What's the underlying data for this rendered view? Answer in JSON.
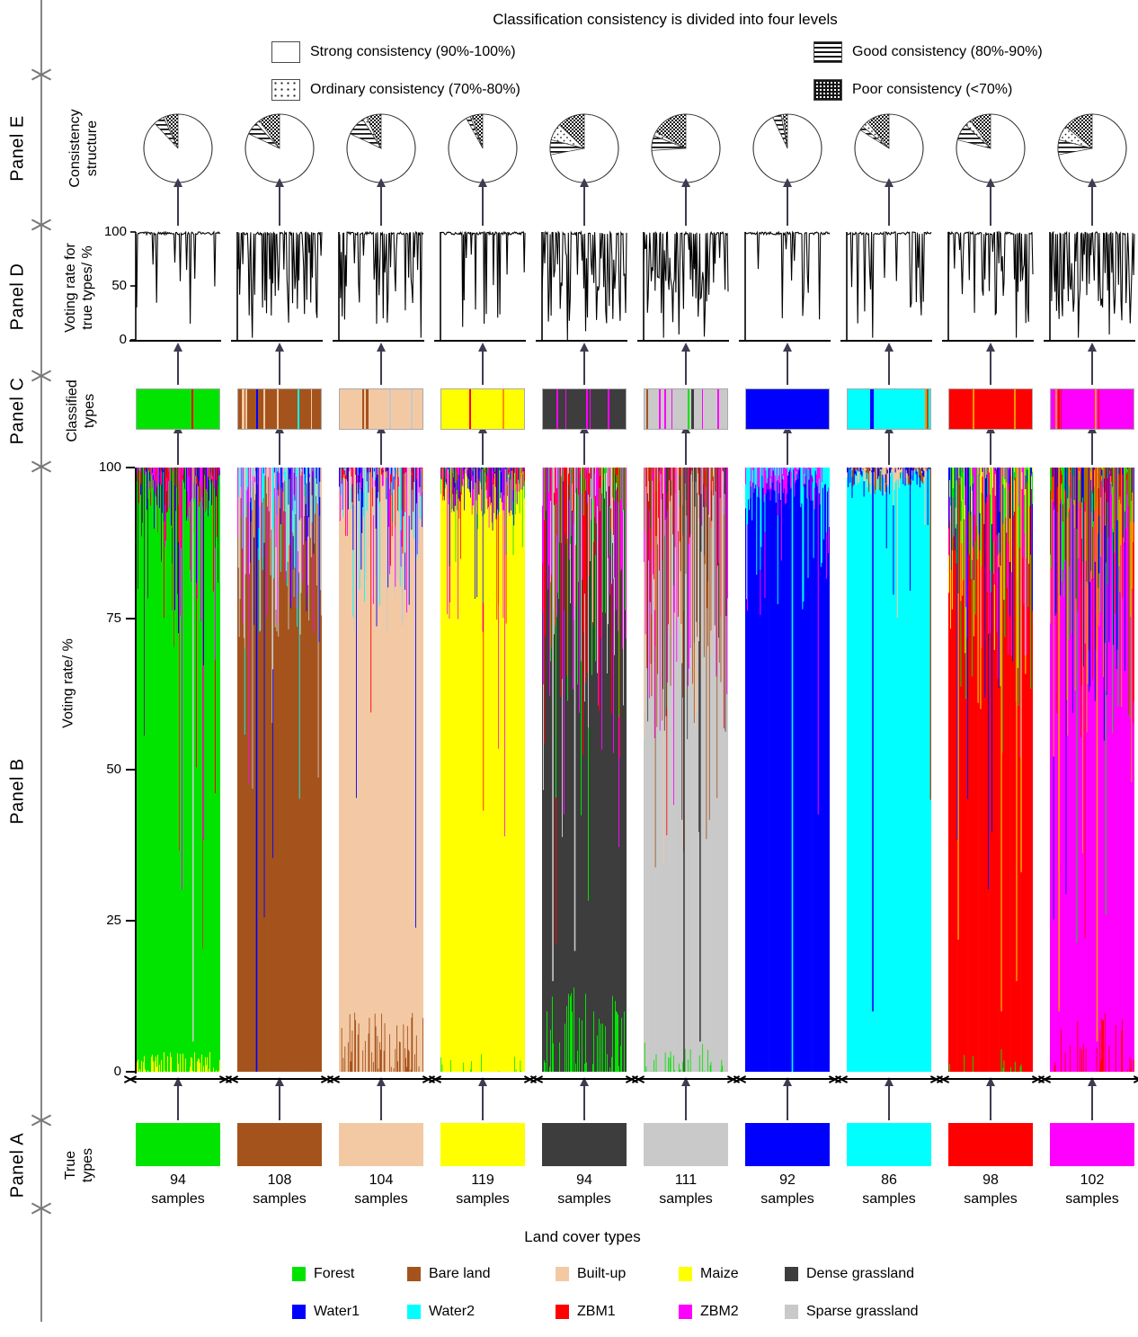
{
  "title": "Classification consistency is divided into four levels",
  "xlabel": "Land cover types",
  "samples_word": "samples",
  "arrow_color": "#3c3c52",
  "rail_color": "#848484",
  "consistency_legend": {
    "items": [
      {
        "key": "strong",
        "label": "Strong consistency (90%-100%)"
      },
      {
        "key": "good",
        "label": "Good consistency (80%-90%)"
      },
      {
        "key": "ordinary",
        "label": "Ordinary consistency (70%-80%)"
      },
      {
        "key": "poor",
        "label": "Poor consistency (<70%)"
      }
    ]
  },
  "panels": {
    "E": {
      "name": "Panel E",
      "axis_label_lines": [
        "Consistency",
        "structure"
      ]
    },
    "D": {
      "name": "Panel D",
      "axis_label_lines": [
        "Voting rate for",
        "true types/ %"
      ],
      "yticks": [
        100,
        50,
        0
      ]
    },
    "C": {
      "name": "Panel C",
      "axis_label_lines": [
        "Classified",
        "types"
      ]
    },
    "B": {
      "name": "Panel B",
      "axis_label_lines": [
        "Voting rate/ %"
      ],
      "yticks": [
        100,
        75,
        50,
        25,
        0
      ]
    },
    "A": {
      "name": "Panel A",
      "axis_label_lines": [
        "True",
        "types"
      ]
    }
  },
  "palette": {
    "forest": "#00e400",
    "bareland": "#a5531c",
    "builtup": "#f3c9a4",
    "maize": "#ffff00",
    "dense": "#3d3d3d",
    "water1": "#0000ff",
    "water2": "#00ffff",
    "zbm1": "#ff0000",
    "zbm2": "#ff00ff",
    "sparse": "#c9c9c9",
    "orange": "#ff9100"
  },
  "land_cover_legend": {
    "rows": [
      [
        {
          "key": "forest",
          "label": "Forest"
        },
        {
          "key": "bareland",
          "label": "Bare land"
        },
        {
          "key": "builtup",
          "label": "Built-up"
        },
        {
          "key": "maize",
          "label": "Maize"
        },
        {
          "key": "dense",
          "label": "Dense grassland"
        }
      ],
      [
        {
          "key": "water1",
          "label": "Water1"
        },
        {
          "key": "water2",
          "label": "Water2"
        },
        {
          "key": "zbm1",
          "label": "ZBM1"
        },
        {
          "key": "zbm2",
          "label": "ZBM2"
        },
        {
          "key": "sparse",
          "label": "Sparse grassland"
        }
      ]
    ]
  },
  "chart_data": {
    "type": "composite",
    "description": "Per land-cover-type classification consistency: Panel A true types (sample counts), Panel B per-sample voting-rate stacked bars (%), Panel C classified-type strips, Panel D voting rate for true types line plots (%), Panel E consistency-structure pies (percent of samples per consistency level).",
    "panelB_ylim": [
      0,
      100
    ],
    "panelD_ylim": [
      0,
      100
    ],
    "groups": [
      {
        "name": "Forest",
        "color": "forest",
        "samples": 94,
        "pie": {
          "poor": 6,
          "ordinary": 1,
          "good": 5,
          "strong": 88
        },
        "bars": {
          "seed": 11,
          "deep_rate": 0.05,
          "med_rate": 0.28,
          "med_min": 0.7,
          "hi_min": 0.9,
          "noise": [
            "zbm2",
            "zbm1",
            "dense",
            "bareland",
            "water1"
          ],
          "bottom": {
            "color": "maize",
            "rate": 0.5,
            "max": 0.035
          },
          "vlines": [
            {
              "pos": 0.67,
              "color": "sparse",
              "h": 0.95
            }
          ]
        },
        "true_rate_plot": {
          "seed": 61,
          "density": 0.13,
          "deep_spikes": [
            [
              0.01,
              30
            ],
            [
              0.64,
              15
            ]
          ]
        },
        "classified_stripes": [
          [
            0.66,
            "zbm1",
            2
          ]
        ]
      },
      {
        "name": "Bare land",
        "color": "bareland",
        "samples": 108,
        "pie": {
          "poor": 10,
          "ordinary": 2,
          "good": 6,
          "strong": 82
        },
        "bars": {
          "seed": 22,
          "deep_rate": 0.07,
          "med_rate": 0.45,
          "med_min": 0.7,
          "hi_min": 0.85,
          "noise": [
            "water2",
            "zbm2",
            "sparse",
            "builtup",
            "water1"
          ],
          "bottom": null,
          "vlines": [
            {
              "pos": 0.22,
              "color": "water1",
              "h": 1
            }
          ]
        },
        "true_rate_plot": {
          "seed": 62,
          "density": 0.32,
          "deep_spikes": [
            [
              0.18,
              2
            ],
            [
              0.3,
              30
            ]
          ]
        },
        "classified_stripes": [
          [
            0.04,
            "builtup",
            3
          ],
          [
            0.09,
            "builtup",
            2
          ],
          [
            0.22,
            "water1",
            2
          ],
          [
            0.3,
            "builtup",
            2
          ],
          [
            0.47,
            "builtup",
            2
          ],
          [
            0.72,
            "water2",
            2
          ],
          [
            0.88,
            "builtup",
            1
          ]
        ]
      },
      {
        "name": "Built-up",
        "color": "builtup",
        "samples": 104,
        "pie": {
          "poor": 7,
          "ordinary": 2,
          "good": 9,
          "strong": 82
        },
        "bars": {
          "seed": 33,
          "deep_rate": 0.05,
          "med_rate": 0.35,
          "med_min": 0.72,
          "hi_min": 0.88,
          "noise": [
            "water2",
            "zbm2",
            "water1",
            "sparse",
            "zbm1"
          ],
          "bottom": {
            "color": "bareland",
            "rate": 0.45,
            "max": 0.1
          },
          "vlines": []
        },
        "true_rate_plot": {
          "seed": 63,
          "density": 0.3,
          "deep_spikes": [
            [
              0.45,
              15
            ],
            [
              0.52,
              20
            ],
            [
              0.97,
              2
            ]
          ]
        },
        "classified_stripes": [
          [
            0.27,
            "bareland",
            2
          ],
          [
            0.32,
            "bareland",
            3
          ],
          [
            0.6,
            "sparse",
            2
          ],
          [
            0.86,
            "sparse",
            2
          ]
        ]
      },
      {
        "name": "Maize",
        "color": "maize",
        "samples": 119,
        "pie": {
          "poor": 5,
          "ordinary": 1,
          "good": 2,
          "strong": 92
        },
        "bars": {
          "seed": 44,
          "deep_rate": 0.03,
          "med_rate": 0.18,
          "med_min": 0.72,
          "hi_min": 0.92,
          "noise": [
            "zbm2",
            "zbm1",
            "forest",
            "water1"
          ],
          "bottom": {
            "color": "forest",
            "rate": 0.12,
            "max": 0.03
          },
          "vlines": []
        },
        "true_rate_plot": {
          "seed": 64,
          "density": 0.08,
          "deep_spikes": [
            [
              0.26,
              12
            ],
            [
              0.52,
              15
            ]
          ]
        },
        "classified_stripes": [
          [
            0.34,
            "zbm1",
            2
          ],
          [
            0.74,
            "orange",
            2
          ]
        ]
      },
      {
        "name": "Dense grassland",
        "color": "dense",
        "samples": 94,
        "pie": {
          "poor": 13,
          "ordinary": 8,
          "good": 7,
          "strong": 72
        },
        "bars": {
          "seed": 55,
          "deep_rate": 0.12,
          "med_rate": 0.55,
          "med_min": 0.5,
          "hi_min": 0.8,
          "noise": [
            "zbm1",
            "zbm2",
            "sparse",
            "forest"
          ],
          "bottom": {
            "color": "forest",
            "rate": 0.35,
            "max": 0.14
          },
          "vlines": [
            {
              "pos": 0.12,
              "color": "sparse",
              "h": 0.85
            },
            {
              "pos": 0.38,
              "color": "sparse",
              "h": 0.8
            }
          ]
        },
        "true_rate_plot": {
          "seed": 65,
          "density": 0.42,
          "deep_spikes": [
            [
              0.3,
              0
            ],
            [
              0.52,
              8
            ]
          ]
        },
        "classified_stripes": [
          [
            0.16,
            "zbm2",
            2
          ],
          [
            0.27,
            "zbm2",
            1
          ],
          [
            0.52,
            "zbm2",
            2
          ],
          [
            0.56,
            "zbm2",
            1
          ],
          [
            0.78,
            "zbm2",
            2
          ]
        ]
      },
      {
        "name": "Sparse grassland",
        "color": "sparse",
        "samples": 111,
        "pie": {
          "poor": 17,
          "ordinary": 2,
          "good": 7,
          "strong": 74
        },
        "bars": {
          "seed": 66,
          "deep_rate": 0.1,
          "med_rate": 0.5,
          "med_min": 0.55,
          "hi_min": 0.82,
          "noise": [
            "zbm2",
            "zbm1",
            "bareland",
            "dense",
            "builtup"
          ],
          "bottom": {
            "color": "forest",
            "rate": 0.2,
            "max": 0.05
          },
          "vlines": [
            {
              "pos": 0.47,
              "color": "dense",
              "h": 1
            },
            {
              "pos": 0.66,
              "color": "dense",
              "h": 0.95
            }
          ]
        },
        "true_rate_plot": {
          "seed": 66,
          "density": 0.5,
          "deep_spikes": [
            [
              0.24,
              2
            ],
            [
              0.42,
              5
            ],
            [
              0.72,
              3
            ]
          ]
        },
        "classified_stripes": [
          [
            0.02,
            "bareland",
            2
          ],
          [
            0.17,
            "zbm2",
            2
          ],
          [
            0.24,
            "zbm2",
            2
          ],
          [
            0.33,
            "zbm2",
            1
          ],
          [
            0.52,
            "forest",
            2
          ],
          [
            0.57,
            "dense",
            3
          ],
          [
            0.7,
            "zbm2",
            1
          ],
          [
            0.88,
            "zbm2",
            2
          ]
        ]
      },
      {
        "name": "Water1",
        "color": "water1",
        "samples": 92,
        "pie": {
          "poor": 2,
          "ordinary": 1,
          "good": 4,
          "strong": 93
        },
        "bars": {
          "seed": 77,
          "deep_rate": 0.02,
          "med_rate": 0.15,
          "med_min": 0.75,
          "hi_min": 0.93,
          "noise": [
            "water2",
            "zbm2"
          ],
          "bottom": null,
          "vlines": [
            {
              "pos": 0.55,
              "color": "water2",
              "h": 1
            }
          ]
        },
        "true_rate_plot": {
          "seed": 67,
          "density": 0.06,
          "deep_spikes": [
            [
              0.55,
              55
            ]
          ]
        },
        "classified_stripes": []
      },
      {
        "name": "Water2",
        "color": "water2",
        "samples": 86,
        "pie": {
          "poor": 11,
          "ordinary": 3,
          "good": 2,
          "strong": 84
        },
        "bars": {
          "seed": 88,
          "deep_rate": 0.01,
          "med_rate": 0.08,
          "med_min": 0.75,
          "hi_min": 0.95,
          "noise": [
            "water1",
            "builtup",
            "bareland"
          ],
          "bottom": null,
          "vlines": [
            {
              "pos": 0.3,
              "color": "water1",
              "h": 0.9
            },
            {
              "pos": 0.985,
              "color": "bareland",
              "h": 0.55
            }
          ]
        },
        "true_rate_plot": {
          "seed": 68,
          "density": 0.1,
          "deep_spikes": [
            [
              0.3,
              2
            ],
            [
              0.75,
              30
            ],
            [
              0.82,
              35
            ]
          ]
        },
        "classified_stripes": [
          [
            0.27,
            "water1",
            4
          ],
          [
            0.93,
            "orange",
            2
          ],
          [
            0.96,
            "bareland",
            2
          ]
        ]
      },
      {
        "name": "ZBM1",
        "color": "zbm1",
        "samples": 98,
        "pie": {
          "poor": 10,
          "ordinary": 3,
          "good": 8,
          "strong": 79
        },
        "bars": {
          "seed": 99,
          "deep_rate": 0.08,
          "med_rate": 0.45,
          "med_min": 0.6,
          "hi_min": 0.84,
          "noise": [
            "zbm2",
            "water1",
            "forest",
            "maize"
          ],
          "bottom": {
            "color": "forest",
            "rate": 0.08,
            "max": 0.04
          },
          "vlines": [
            {
              "pos": 0.62,
              "color": "orange",
              "h": 0.9
            },
            {
              "pos": 0.8,
              "color": "orange",
              "h": 0.85
            }
          ]
        },
        "true_rate_plot": {
          "seed": 69,
          "density": 0.35,
          "deep_spikes": [
            [
              0.8,
              2
            ]
          ]
        },
        "classified_stripes": [
          [
            0.28,
            "orange",
            2
          ],
          [
            0.78,
            "orange",
            2
          ]
        ]
      },
      {
        "name": "ZBM2",
        "color": "zbm2",
        "samples": 102,
        "pie": {
          "poor": 14,
          "ordinary": 7,
          "good": 7,
          "strong": 72
        },
        "bars": {
          "seed": 110,
          "deep_rate": 0.1,
          "med_rate": 0.5,
          "med_min": 0.55,
          "hi_min": 0.8,
          "noise": [
            "zbm1",
            "orange",
            "water1",
            "forest"
          ],
          "bottom": {
            "color": "zbm1",
            "rate": 0.3,
            "max": 0.1
          },
          "vlines": [
            {
              "pos": 0.1,
              "color": "orange",
              "h": 0.9
            },
            {
              "pos": 0.55,
              "color": "orange",
              "h": 0.95
            }
          ]
        },
        "true_rate_plot": {
          "seed": 70,
          "density": 0.45,
          "deep_spikes": [
            [
              0.34,
              2
            ],
            [
              0.7,
              5
            ],
            [
              0.99,
              60
            ]
          ]
        },
        "classified_stripes": [
          [
            0.05,
            "orange",
            2
          ],
          [
            0.09,
            "zbm1",
            2
          ],
          [
            0.12,
            "zbm1",
            1
          ],
          [
            0.53,
            "orange",
            2
          ],
          [
            0.58,
            "zbm1",
            1
          ]
        ]
      }
    ]
  }
}
